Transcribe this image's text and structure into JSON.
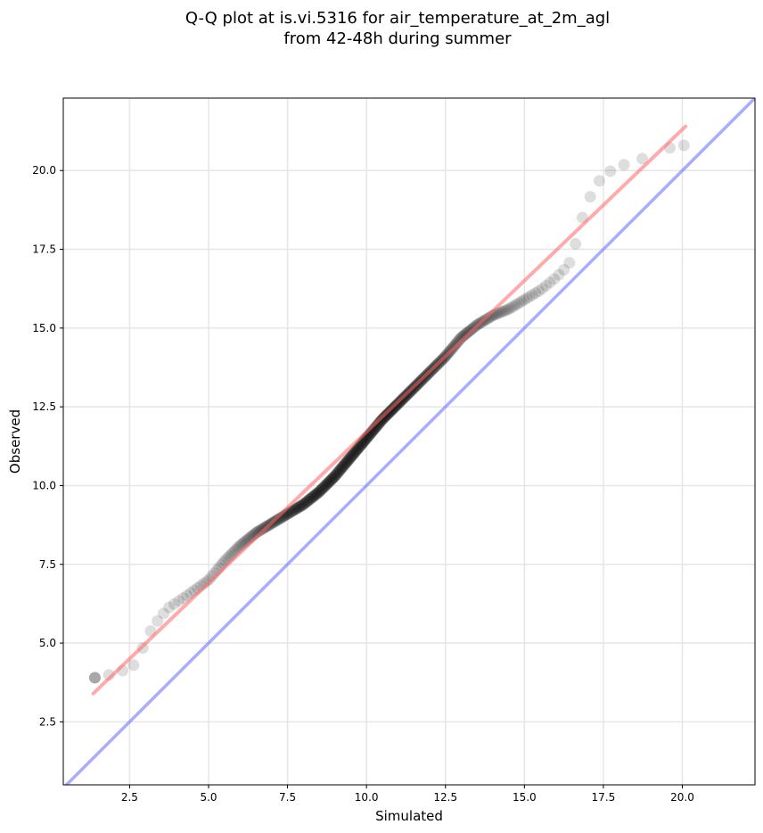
{
  "chart_data": {
    "type": "scatter",
    "title_line1": "Q-Q plot at is.vi.5316 for air_temperature_at_2m_agl",
    "title_line2": "from 42-48h during summer",
    "xlabel": "Simulated",
    "ylabel": "Observed",
    "xlim": [
      0.4,
      22.3
    ],
    "ylim": [
      0.5,
      22.3
    ],
    "xticks": [
      2.5,
      5.0,
      7.5,
      10.0,
      12.5,
      15.0,
      17.5,
      20.0
    ],
    "yticks": [
      2.5,
      5.0,
      7.5,
      10.0,
      12.5,
      15.0,
      17.5,
      20.0
    ],
    "xtick_labels": [
      "2.5",
      "5.0",
      "7.5",
      "10.0",
      "12.5",
      "15.0",
      "17.5",
      "20.0"
    ],
    "ytick_labels": [
      "2.5",
      "5.0",
      "7.5",
      "10.0",
      "12.5",
      "15.0",
      "17.5",
      "20.0"
    ],
    "grid": true,
    "point_color": "#000000",
    "fit_line_color": "#ff6666",
    "identity_line_color": "#6666ff",
    "fit_line": {
      "x": [
        1.35,
        20.1
      ],
      "y": [
        3.4,
        21.4
      ]
    },
    "identity_line": {
      "x": [
        0.4,
        22.3
      ],
      "y": [
        0.4,
        22.3
      ]
    },
    "quantile_curve": {
      "x": [
        1.4,
        1.9,
        2.5,
        2.75,
        2.9,
        3.05,
        3.3,
        3.7,
        4.3,
        5.0,
        5.5,
        6.0,
        6.5,
        7.0,
        7.5,
        8.0,
        8.5,
        9.0,
        9.5,
        10.0,
        10.5,
        11.0,
        11.5,
        12.0,
        12.5,
        13.0,
        13.5,
        14.0,
        14.5,
        15.0,
        15.5,
        16.0,
        16.4,
        16.6,
        16.8,
        17.0,
        17.3,
        17.6,
        17.9,
        18.8,
        19.5,
        20.05
      ],
      "y": [
        3.9,
        4.0,
        4.2,
        4.4,
        4.8,
        5.2,
        5.6,
        6.1,
        6.5,
        7.0,
        7.6,
        8.1,
        8.5,
        8.8,
        9.1,
        9.4,
        9.8,
        10.3,
        10.9,
        11.5,
        12.1,
        12.6,
        13.1,
        13.6,
        14.1,
        14.7,
        15.1,
        15.4,
        15.6,
        15.9,
        16.2,
        16.6,
        17.0,
        17.6,
        18.4,
        19.0,
        19.6,
        19.9,
        20.1,
        20.4,
        20.7,
        20.8
      ]
    }
  }
}
